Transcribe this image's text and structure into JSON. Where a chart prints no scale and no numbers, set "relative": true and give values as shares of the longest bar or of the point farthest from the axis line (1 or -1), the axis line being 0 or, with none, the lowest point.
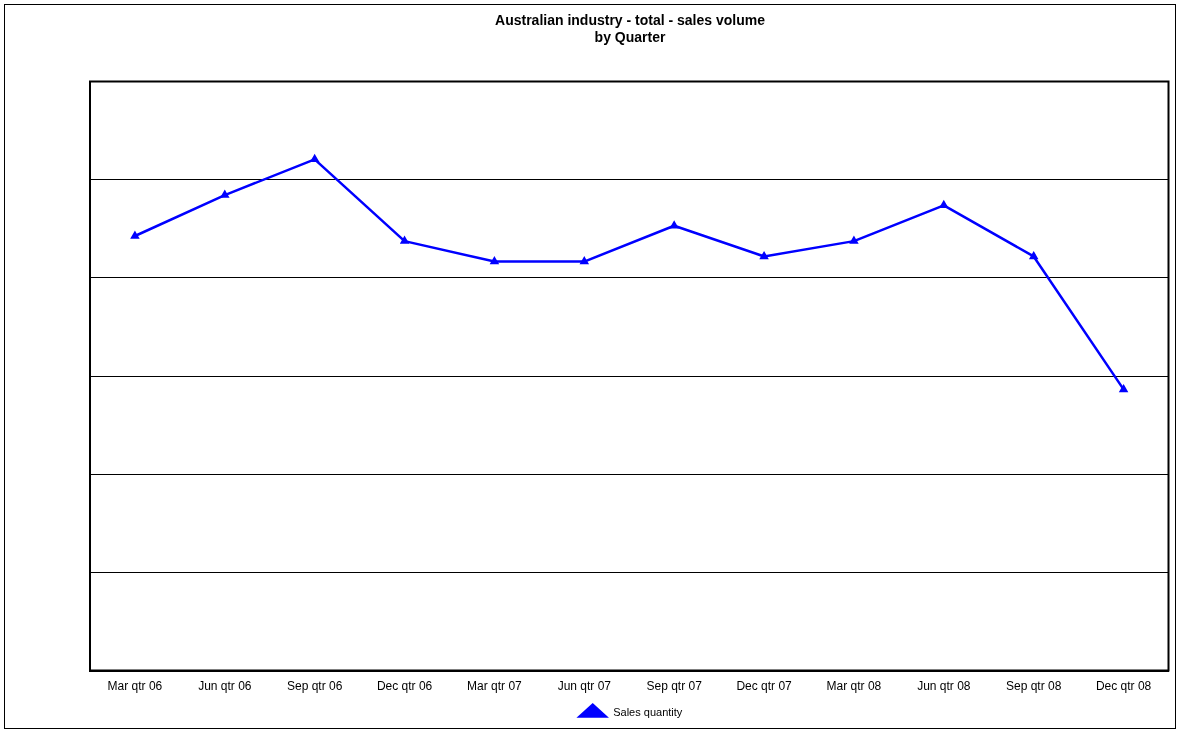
{
  "chart_data": {
    "type": "line",
    "title": "Australian industry - total - sales volume",
    "subtitle": "by Quarter",
    "relative": true,
    "categories": [
      "Mar qtr 06",
      "Jun qtr 06",
      "Sep qtr 06",
      "Dec qtr 06",
      "Mar qtr 07",
      "Jun qtr 07",
      "Sep qtr 07",
      "Dec qtr 07",
      "Mar qtr 08",
      "Jun qtr 08",
      "Sep qtr 08",
      "Dec qtr 08"
    ],
    "series": [
      {
        "name": "Sales quantity",
        "color": "#0000ff",
        "values": [
          0.85,
          0.93,
          1,
          0.84,
          0.8,
          0.8,
          0.87,
          0.81,
          0.84,
          0.91,
          0.81,
          0.55
        ]
      }
    ],
    "grid": "y",
    "legend": "bottom",
    "marker": "triangle",
    "line_style": "solid"
  }
}
